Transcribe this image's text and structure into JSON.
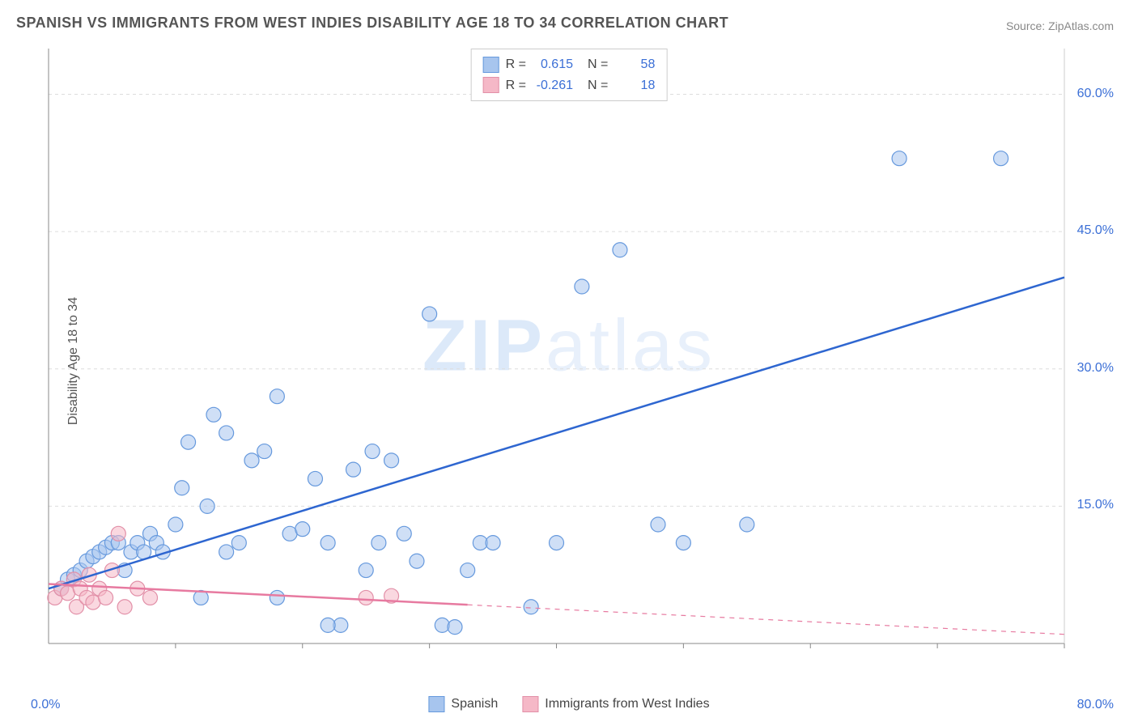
{
  "title": "SPANISH VS IMMIGRANTS FROM WEST INDIES DISABILITY AGE 18 TO 34 CORRELATION CHART",
  "source": "Source: ZipAtlas.com",
  "ylabel": "Disability Age 18 to 34",
  "watermark_bold": "ZIP",
  "watermark_light": "atlas",
  "chart": {
    "type": "scatter",
    "xlim": [
      0,
      80
    ],
    "ylim": [
      0,
      65
    ],
    "xticks": [
      10,
      20,
      30,
      40,
      50,
      60,
      70,
      80
    ],
    "yticks": [
      15,
      30,
      45,
      60
    ],
    "ytick_labels": [
      "15.0%",
      "30.0%",
      "45.0%",
      "60.0%"
    ],
    "origin_label": "0.0%",
    "xmax_label": "80.0%",
    "grid_color": "#dddddd",
    "axis_color": "#888888",
    "background_color": "#ffffff",
    "marker_radius": 9,
    "marker_opacity": 0.55,
    "series": [
      {
        "name": "Spanish",
        "color_fill": "#a7c5ee",
        "color_stroke": "#6699dd",
        "line_color": "#2e66d0",
        "line_width": 2.5,
        "line_dash_after_x": null,
        "R": "0.615",
        "N": "58",
        "regression": {
          "x1": 0,
          "y1": 6,
          "x2": 80,
          "y2": 40
        },
        "points": [
          [
            1,
            6
          ],
          [
            1.5,
            7
          ],
          [
            2,
            7.5
          ],
          [
            2.5,
            8
          ],
          [
            3,
            9
          ],
          [
            3.5,
            9.5
          ],
          [
            4,
            10
          ],
          [
            4.5,
            10.5
          ],
          [
            5,
            11
          ],
          [
            5.5,
            11
          ],
          [
            6,
            8
          ],
          [
            6.5,
            10
          ],
          [
            7,
            11
          ],
          [
            7.5,
            10
          ],
          [
            8,
            12
          ],
          [
            8.5,
            11
          ],
          [
            9,
            10
          ],
          [
            10,
            13
          ],
          [
            10.5,
            17
          ],
          [
            11,
            22
          ],
          [
            12,
            5
          ],
          [
            12.5,
            15
          ],
          [
            13,
            25
          ],
          [
            14,
            10
          ],
          [
            15,
            11
          ],
          [
            16,
            20
          ],
          [
            17,
            21
          ],
          [
            18,
            27
          ],
          [
            19,
            12
          ],
          [
            20,
            12.5
          ],
          [
            21,
            18
          ],
          [
            22,
            11
          ],
          [
            23,
            2
          ],
          [
            24,
            19
          ],
          [
            25,
            8
          ],
          [
            25.5,
            21
          ],
          [
            26,
            11
          ],
          [
            27,
            20
          ],
          [
            28,
            12
          ],
          [
            29,
            9
          ],
          [
            30,
            36
          ],
          [
            31,
            2
          ],
          [
            32,
            1.8
          ],
          [
            33,
            8
          ],
          [
            34,
            11
          ],
          [
            35,
            11
          ],
          [
            38,
            4
          ],
          [
            40,
            11
          ],
          [
            42,
            39
          ],
          [
            45,
            43
          ],
          [
            48,
            13
          ],
          [
            50,
            11
          ],
          [
            55,
            13
          ],
          [
            67,
            53
          ],
          [
            75,
            53
          ],
          [
            22,
            2
          ],
          [
            18,
            5
          ],
          [
            14,
            23
          ]
        ]
      },
      {
        "name": "Immigrants from West Indies",
        "color_fill": "#f5b8c7",
        "color_stroke": "#e290a8",
        "line_color": "#e77aa0",
        "line_width": 2.5,
        "line_dash_after_x": 33,
        "R": "-0.261",
        "N": "18",
        "regression": {
          "x1": 0,
          "y1": 6.5,
          "x2": 80,
          "y2": 1
        },
        "points": [
          [
            0.5,
            5
          ],
          [
            1,
            6
          ],
          [
            1.5,
            5.5
          ],
          [
            2,
            7
          ],
          [
            2.2,
            4
          ],
          [
            2.5,
            6
          ],
          [
            3,
            5
          ],
          [
            3.2,
            7.5
          ],
          [
            3.5,
            4.5
          ],
          [
            4,
            6
          ],
          [
            4.5,
            5
          ],
          [
            5,
            8
          ],
          [
            5.5,
            12
          ],
          [
            6,
            4
          ],
          [
            7,
            6
          ],
          [
            8,
            5
          ],
          [
            25,
            5
          ],
          [
            27,
            5.2
          ]
        ]
      }
    ]
  },
  "legend": {
    "item1": "Spanish",
    "item2": "Immigrants from West Indies"
  },
  "stats_labels": {
    "R": "R  =",
    "N": "N  ="
  }
}
